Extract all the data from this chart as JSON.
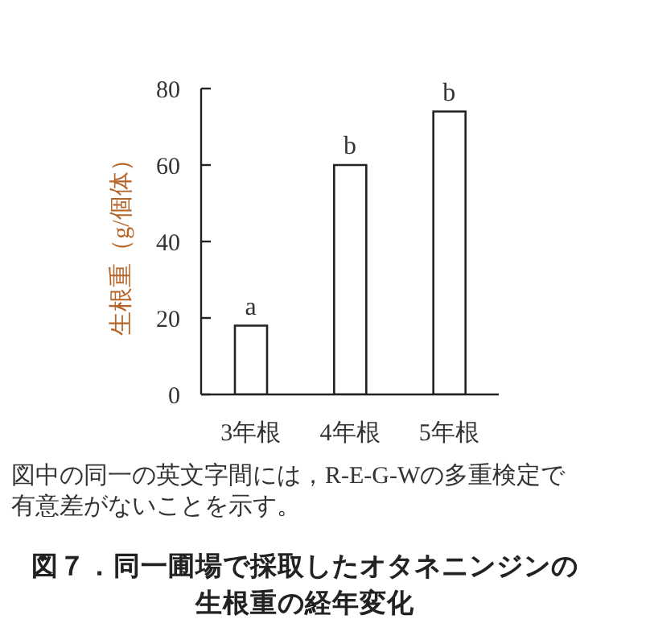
{
  "chart_data": {
    "type": "bar",
    "title": "図７．同一圃場で採取したオタネニンジンの生根重の経年変化",
    "ylabel": "生根重（g/個体）",
    "categories": [
      "3年根",
      "4年根",
      "5年根"
    ],
    "values": [
      18,
      60,
      74
    ],
    "color": "#ffffff",
    "ylim": [
      0,
      80
    ],
    "yticks": [
      0,
      20,
      40,
      60,
      80
    ],
    "annotations": [
      {
        "text": "a",
        "x": "3年根",
        "y": 18
      },
      {
        "text": "b",
        "x": "4年根",
        "y": 60
      },
      {
        "text": "b",
        "x": "5年根",
        "y": 74
      },
      "図中の同一の英文字間には，R-E-G-Wの多重検定で有意差がないことを示す。"
    ]
  }
}
